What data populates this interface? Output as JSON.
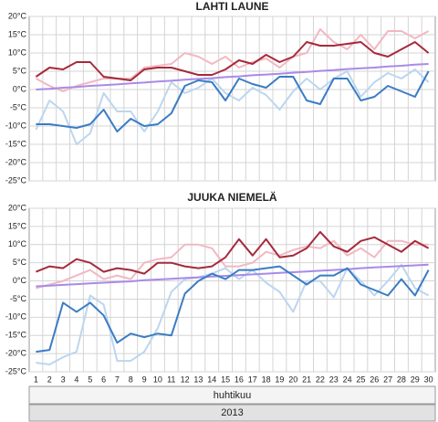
{
  "chart_data": [
    {
      "type": "line",
      "title": "LAHTI LAUNE",
      "ylim": [
        -25,
        20
      ],
      "yticks": [
        {
          "value": 20,
          "label": "20°C"
        },
        {
          "value": 15,
          "label": "15°C"
        },
        {
          "value": 10,
          "label": "10°C"
        },
        {
          "value": 5,
          "label": "5°C"
        },
        {
          "value": 0,
          "label": "0°C"
        },
        {
          "value": -5,
          "label": "-5°C"
        },
        {
          "value": -10,
          "label": "-10°C"
        },
        {
          "value": -15,
          "label": "-15°C"
        },
        {
          "value": -20,
          "label": "-20°C"
        },
        {
          "value": -25,
          "label": "-25°C"
        }
      ],
      "grid": true,
      "series": [
        {
          "color": "#f2b8c2",
          "values": [
            3,
            1,
            -0.5,
            1,
            2,
            3,
            3,
            3,
            6,
            6.5,
            7,
            10,
            9,
            7,
            9,
            6,
            7.5,
            8.5,
            6,
            9,
            10,
            16.5,
            13,
            11,
            15,
            11,
            16,
            16,
            14,
            16
          ]
        },
        {
          "color": "#bcd6ef",
          "values": [
            -11,
            -3,
            -6,
            -15,
            -12,
            -1,
            -6,
            -6,
            -11.5,
            -6,
            2,
            -1,
            0.5,
            3,
            -1,
            -3,
            0.5,
            -1.5,
            -5.5,
            -0.5,
            3,
            0,
            3,
            5,
            -2,
            2,
            4.5,
            3,
            5.5,
            2
          ]
        },
        {
          "color": "#a98ae8",
          "values": [
            0,
            0.2,
            0.5,
            0.7,
            1,
            1.2,
            1.4,
            1.7,
            1.9,
            2.2,
            2.4,
            2.7,
            2.9,
            3.1,
            3.4,
            3.6,
            3.9,
            4.1,
            4.3,
            4.6,
            4.8,
            5.1,
            5.3,
            5.6,
            5.8,
            6,
            6.3,
            6.5,
            6.8,
            7
          ]
        },
        {
          "color": "#a52a3c",
          "values": [
            3.5,
            6,
            5.5,
            7.5,
            7.5,
            3.5,
            3,
            2.5,
            5.5,
            6,
            6,
            5,
            4,
            4,
            5.5,
            8,
            7,
            9.5,
            7.5,
            9,
            13,
            12,
            12,
            12.5,
            13,
            10,
            9,
            11,
            13,
            10
          ]
        },
        {
          "color": "#3a7cc4",
          "values": [
            -9.5,
            -9.5,
            -10,
            -10.5,
            -9.5,
            -5.5,
            -11.5,
            -8,
            -10,
            -9.5,
            -6.5,
            1,
            2.5,
            2,
            -3,
            3,
            1.5,
            0.5,
            3.5,
            3.5,
            -3,
            -4,
            3,
            3,
            -3,
            -2,
            1,
            -0.5,
            -2,
            5
          ]
        }
      ]
    },
    {
      "type": "line",
      "title": "JUUKA NIEMELÄ",
      "ylim": [
        -25,
        20
      ],
      "yticks": [
        {
          "value": 20,
          "label": "20°C"
        },
        {
          "value": 15,
          "label": "15°C"
        },
        {
          "value": 10,
          "label": "10°C"
        },
        {
          "value": 5,
          "label": "5°C"
        },
        {
          "value": 0,
          "label": "0°C"
        },
        {
          "value": -5,
          "label": "-5°C"
        },
        {
          "value": -10,
          "label": "-10°C"
        },
        {
          "value": -15,
          "label": "-15°C"
        },
        {
          "value": -20,
          "label": "-20°C"
        },
        {
          "value": -25,
          "label": "-25°C"
        }
      ],
      "grid": true,
      "series": [
        {
          "color": "#f2b8c2",
          "values": [
            -2,
            -1,
            0,
            1.5,
            3,
            0.5,
            1.5,
            0.5,
            5,
            6,
            6.5,
            10,
            10,
            9,
            4,
            4,
            5,
            8,
            7,
            8.5,
            9.5,
            9,
            11,
            7,
            9,
            6.5,
            11,
            11,
            10,
            10
          ]
        },
        {
          "color": "#bcd6ef",
          "values": [
            -22.5,
            -23,
            -21,
            -19.5,
            -4,
            -6.5,
            -22,
            -22,
            -19.5,
            -13,
            -3,
            0.5,
            1,
            2,
            3.5,
            0.5,
            3,
            -0.5,
            -3,
            -8.5,
            0,
            0,
            -4.5,
            3.5,
            0,
            -4,
            0,
            4.5,
            -2,
            -4
          ]
        },
        {
          "color": "#a98ae8",
          "values": [
            -1.5,
            -1.3,
            -1.1,
            -0.9,
            -0.7,
            -0.5,
            -0.3,
            -0.1,
            0.2,
            0.4,
            0.6,
            0.8,
            1,
            1.2,
            1.4,
            1.6,
            1.8,
            2,
            2.2,
            2.4,
            2.6,
            2.8,
            3,
            3.2,
            3.5,
            3.7,
            3.9,
            4.1,
            4.3,
            4.5
          ]
        },
        {
          "color": "#a52a3c",
          "values": [
            2.5,
            4,
            3.5,
            6,
            5,
            2.5,
            3.5,
            3,
            2,
            5,
            5,
            4,
            3.5,
            4,
            6.5,
            11.5,
            7,
            11.5,
            6.5,
            7,
            9,
            13.5,
            9.5,
            8,
            11,
            12,
            10,
            8,
            11,
            9
          ]
        },
        {
          "color": "#3a7cc4",
          "values": [
            -19.5,
            -19,
            -6,
            -8.5,
            -6,
            -9.5,
            -17,
            -14.5,
            -15.5,
            -14.5,
            -15,
            -3.5,
            0,
            2,
            0.5,
            3,
            3,
            3.5,
            4,
            1.5,
            -1,
            1.5,
            1.5,
            3.5,
            -1,
            -2.5,
            -4,
            0.5,
            -4,
            3
          ]
        }
      ]
    }
  ],
  "x_axis": {
    "categories": [
      1,
      2,
      3,
      4,
      5,
      6,
      7,
      8,
      9,
      10,
      11,
      12,
      13,
      14,
      15,
      16,
      17,
      18,
      19,
      20,
      21,
      22,
      23,
      24,
      25,
      26,
      27,
      28,
      29,
      30
    ],
    "month": "huhtikuu",
    "year": "2013"
  }
}
